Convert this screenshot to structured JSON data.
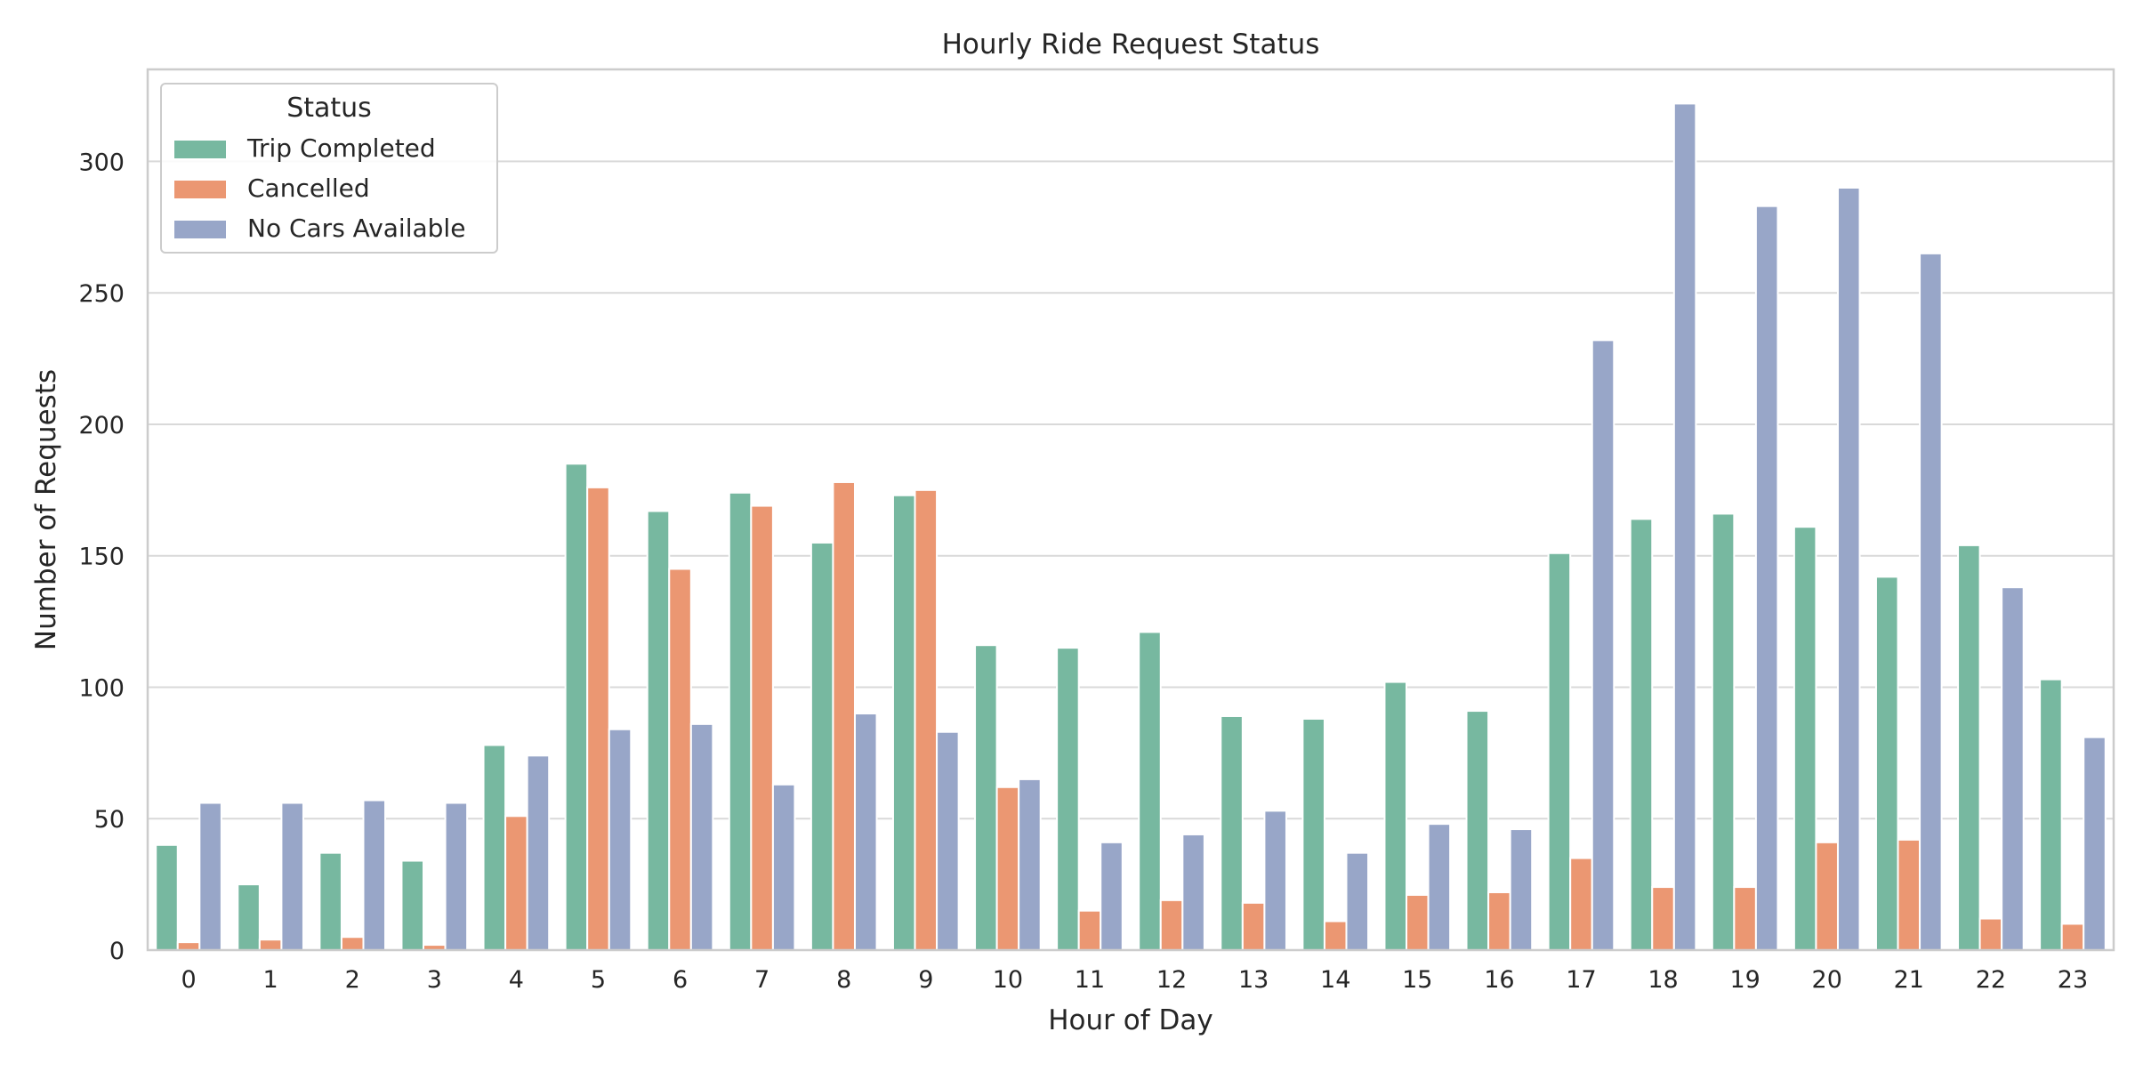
{
  "chart_data": {
    "type": "bar",
    "title": "Hourly Ride Request Status",
    "xlabel": "Hour of Day",
    "ylabel": "Number of Requests",
    "ylim": [
      0,
      335
    ],
    "yticks": [
      0,
      50,
      100,
      150,
      200,
      250,
      300
    ],
    "grid": true,
    "legend": {
      "title": "Status",
      "position": "top-left"
    },
    "categories": [
      "0",
      "1",
      "2",
      "3",
      "4",
      "5",
      "6",
      "7",
      "8",
      "9",
      "10",
      "11",
      "12",
      "13",
      "14",
      "15",
      "16",
      "17",
      "18",
      "19",
      "20",
      "21",
      "22",
      "23"
    ],
    "series": [
      {
        "name": "Trip Completed",
        "color": "#77b8a0",
        "values": [
          40,
          25,
          37,
          34,
          78,
          185,
          167,
          174,
          155,
          173,
          116,
          115,
          121,
          89,
          88,
          102,
          91,
          151,
          164,
          166,
          161,
          142,
          154,
          103
        ]
      },
      {
        "name": "Cancelled",
        "color": "#eb9772",
        "values": [
          3,
          4,
          5,
          2,
          51,
          176,
          145,
          169,
          178,
          175,
          62,
          15,
          19,
          18,
          11,
          21,
          22,
          35,
          24,
          24,
          41,
          42,
          12,
          10
        ]
      },
      {
        "name": "No Cars Available",
        "color": "#98a6c8",
        "values": [
          56,
          56,
          57,
          56,
          74,
          84,
          86,
          63,
          90,
          83,
          65,
          41,
          44,
          53,
          37,
          48,
          46,
          232,
          322,
          283,
          290,
          265,
          138,
          81
        ]
      }
    ]
  }
}
